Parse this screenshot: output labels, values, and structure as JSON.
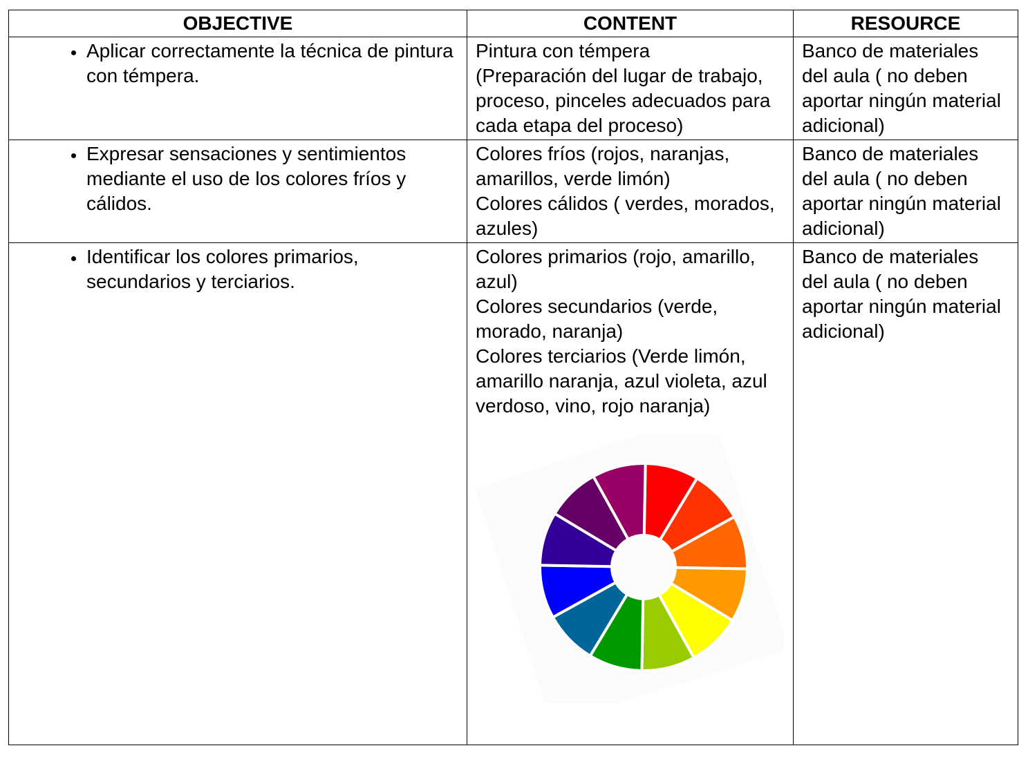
{
  "table": {
    "headers": [
      "OBJECTIVE",
      "CONTENT",
      "RESOURCE"
    ],
    "rows": [
      {
        "objective": "Aplicar correctamente la técnica de pintura con témpera.",
        "content": [
          "Pintura con témpera",
          "(Preparación del lugar de trabajo, proceso, pinceles adecuados para cada etapa del proceso)"
        ],
        "resource": "Banco de materiales del aula ( no deben aportar ningún material adicional)"
      },
      {
        "objective": "Expresar sensaciones y sentimientos mediante el uso de los colores fríos y cálidos.",
        "content": [
          "Colores fríos (rojos, naranjas, amarillos, verde limón)",
          "Colores cálidos ( verdes, morados, azules)"
        ],
        "resource": "Banco de materiales del aula ( no deben aportar ningún material adicional)"
      },
      {
        "objective": "Identificar los colores primarios, secundarios y terciarios.",
        "content": [
          "Colores primarios (rojo, amarillo, azul)",
          "Colores secundarios (verde, morado, naranja)",
          "Colores terciarios (Verde limón, amarillo naranja, azul violeta, azul verdoso, vino, rojo naranja)"
        ],
        "resource": "Banco de materiales del aula ( no deben aportar ningún material adicional)"
      }
    ]
  }
}
